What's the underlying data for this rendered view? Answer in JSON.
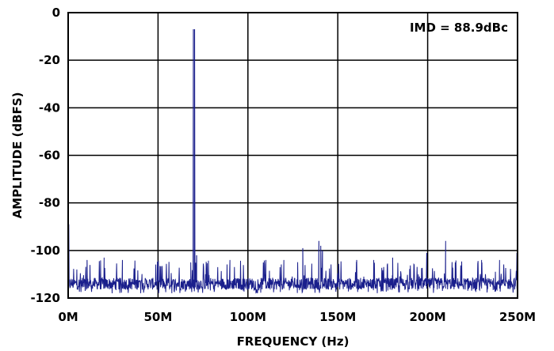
{
  "chart_data": {
    "type": "line",
    "title": "",
    "xlabel": "FREQUENCY (Hz)",
    "ylabel": "AMPLITUDE (dBFS)",
    "xlim": [
      0,
      250
    ],
    "ylim": [
      -120,
      0
    ],
    "x_unit": "MHz",
    "x_ticks": [
      0,
      50,
      100,
      150,
      200,
      250
    ],
    "x_tick_labels": [
      "0M",
      "50M",
      "100M",
      "150M",
      "200M",
      "250M"
    ],
    "y_ticks": [
      0,
      -20,
      -40,
      -60,
      -80,
      -100,
      -120
    ],
    "y_tick_labels": [
      "0",
      "-20",
      "-40",
      "-60",
      "-80",
      "-100",
      "-120"
    ],
    "grid": true,
    "annotation": "IMD = 88.9dBc",
    "annotation_position": "top-right",
    "series_color": "#1a1f8c",
    "noise_floor_dbfs": -114,
    "noise_floor_spread_dbfs": 2.5,
    "series": [
      {
        "name": "",
        "peaks": [
          {
            "x": 0.3,
            "y": -89
          },
          {
            "x": 69.7,
            "y": -7
          },
          {
            "x": 70.3,
            "y": -7
          },
          {
            "x": 71.5,
            "y": -102
          },
          {
            "x": 68.2,
            "y": -105
          },
          {
            "x": 130.5,
            "y": -99
          },
          {
            "x": 139.5,
            "y": -96
          },
          {
            "x": 140.5,
            "y": -98
          },
          {
            "x": 141.5,
            "y": -100
          },
          {
            "x": 199.5,
            "y": -101
          },
          {
            "x": 210.0,
            "y": -96
          },
          {
            "x": 249.7,
            "y": -101
          },
          {
            "x": 10.5,
            "y": -104
          },
          {
            "x": 20.0,
            "y": -103
          },
          {
            "x": 30.2,
            "y": -104
          },
          {
            "x": 90.0,
            "y": -104
          },
          {
            "x": 110.0,
            "y": -104
          },
          {
            "x": 120.0,
            "y": -104
          },
          {
            "x": 160.5,
            "y": -104
          },
          {
            "x": 170.0,
            "y": -104
          },
          {
            "x": 180.5,
            "y": -103
          },
          {
            "x": 230.0,
            "y": -104
          },
          {
            "x": 240.0,
            "y": -104
          }
        ]
      }
    ]
  }
}
